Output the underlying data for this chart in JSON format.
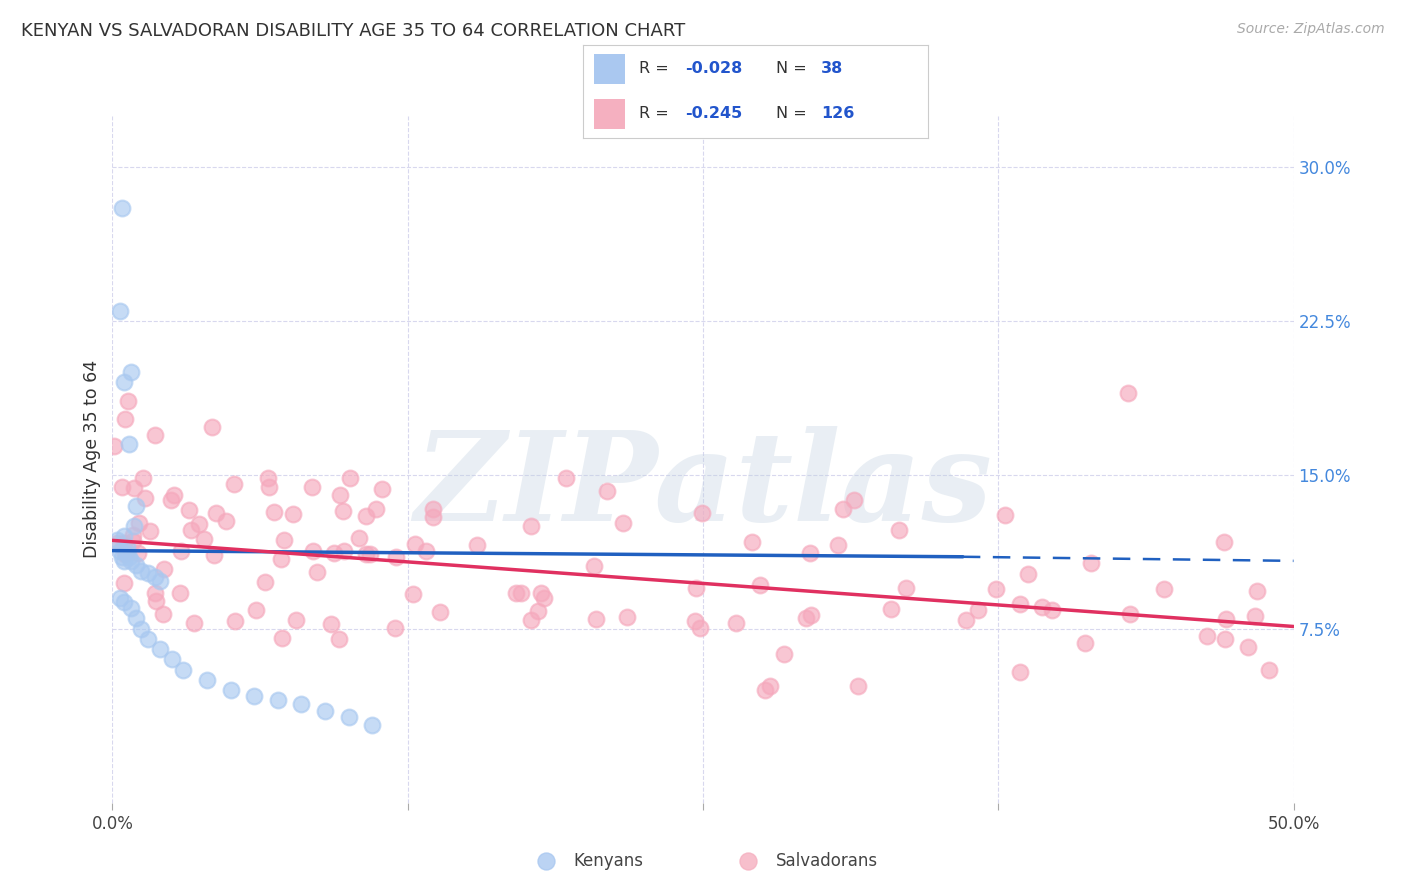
{
  "title": "KENYAN VS SALVADORAN DISABILITY AGE 35 TO 64 CORRELATION CHART",
  "source": "Source: ZipAtlas.com",
  "ylabel": "Disability Age 35 to 64",
  "xlim": [
    0.0,
    0.5
  ],
  "ylim": [
    -0.01,
    0.325
  ],
  "xticks": [
    0.0,
    0.125,
    0.25,
    0.375,
    0.5
  ],
  "xtick_labels": [
    "0.0%",
    "",
    "",
    "",
    "50.0%"
  ],
  "yticks_right": [
    0.075,
    0.15,
    0.225,
    0.3
  ],
  "ytick_labels_right": [
    "7.5%",
    "15.0%",
    "22.5%",
    "30.0%"
  ],
  "kenyan_color": "#a8c8f0",
  "salvadoran_color": "#f5a8bc",
  "kenyan_edge_color": "#a8c8f0",
  "salvadoran_edge_color": "#f5a8bc",
  "kenyan_line_color": "#2060c0",
  "salvadoran_line_color": "#e03060",
  "background_color": "#ffffff",
  "grid_color": "#d8d8ee",
  "R_kenyan": -0.028,
  "N_kenyan": 38,
  "R_salvadoran": -0.245,
  "N_salvadoran": 126,
  "watermark": "ZIPatlas",
  "kenyan_line_x0": 0.0,
  "kenyan_line_x_solid_end": 0.36,
  "kenyan_line_x1": 0.5,
  "kenyan_line_y0": 0.113,
  "kenyan_line_y_solid_end": 0.11,
  "kenyan_line_y1": 0.108,
  "salvadoran_line_x0": 0.0,
  "salvadoran_line_x1": 0.5,
  "salvadoran_line_y0": 0.118,
  "salvadoran_line_y1": 0.076
}
